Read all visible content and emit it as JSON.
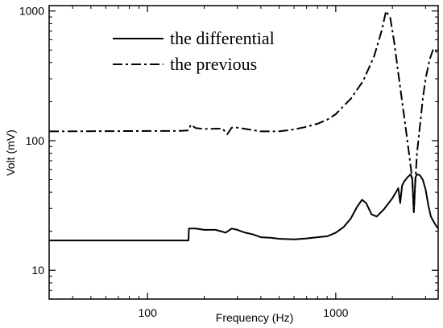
{
  "chart_data": {
    "type": "line",
    "title": "",
    "xlabel": "Frequency (Hz)",
    "ylabel": "Volt (mV)",
    "x_scale": "log",
    "y_scale": "log",
    "xlim": [
      30,
      3500
    ],
    "ylim": [
      6,
      1100
    ],
    "x_ticks": [
      100,
      1000
    ],
    "x_tick_labels": [
      "100",
      "1000"
    ],
    "y_ticks": [
      10,
      100,
      1000
    ],
    "y_tick_labels": [
      "10",
      "100",
      "1000"
    ],
    "grid": false,
    "legend_position": "top-left",
    "series": [
      {
        "name": "the differential",
        "style": "solid",
        "color": "#000000",
        "x": [
          30,
          165,
          166,
          180,
          200,
          230,
          260,
          280,
          300,
          330,
          360,
          400,
          450,
          500,
          600,
          700,
          800,
          900,
          1000,
          1100,
          1200,
          1300,
          1380,
          1450,
          1550,
          1650,
          1800,
          2000,
          2150,
          2200,
          2250,
          2300,
          2400,
          2500,
          2550,
          2600,
          2650,
          2700,
          2800,
          2900,
          3000,
          3100,
          3200,
          3350,
          3500
        ],
        "y": [
          17,
          17,
          21,
          21,
          20.5,
          20.5,
          19.5,
          21,
          20.5,
          19.5,
          19,
          18,
          17.8,
          17.5,
          17.3,
          17.6,
          18,
          18.3,
          19.5,
          21.5,
          25,
          31,
          35,
          33,
          27,
          26,
          29.5,
          36,
          43,
          33,
          45,
          48,
          52,
          55,
          50,
          28,
          52,
          55,
          54,
          50,
          42,
          32,
          26,
          23,
          21
        ]
      },
      {
        "name": "the previous",
        "style": "dash-dot",
        "color": "#000000",
        "x": [
          30,
          150,
          165,
          170,
          180,
          200,
          250,
          265,
          280,
          300,
          400,
          500,
          600,
          700,
          800,
          900,
          1000,
          1100,
          1200,
          1400,
          1600,
          1750,
          1850,
          1950,
          2050,
          2150,
          2300,
          2450,
          2550,
          2600,
          2650,
          2700,
          2800,
          2900,
          3000,
          3150,
          3300,
          3450,
          3500
        ],
        "y": [
          118,
          119,
          120,
          133,
          125,
          123,
          124,
          112,
          126,
          126,
          118,
          118,
          122,
          128,
          135,
          145,
          160,
          185,
          210,
          290,
          450,
          700,
          1000,
          880,
          560,
          330,
          160,
          80,
          50,
          28,
          50,
          80,
          130,
          210,
          300,
          420,
          510,
          480,
          460
        ]
      }
    ]
  }
}
